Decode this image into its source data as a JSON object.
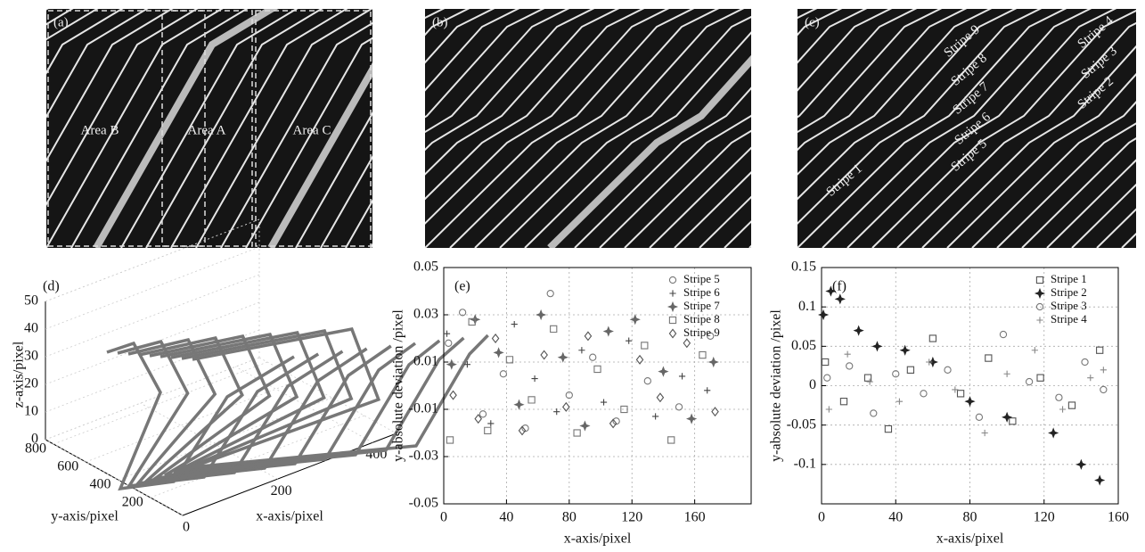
{
  "image_panels": [
    {
      "label": "(a)",
      "annotations": [
        "Area B",
        "Area A",
        "Area C"
      ]
    },
    {
      "label": "(b)",
      "annotations": []
    },
    {
      "label": "(c)",
      "annotations": [
        "Stripe 1",
        "Stripe 9",
        "Stripe 8",
        "Stripe 7",
        "Stripe 6",
        "Stripe 5",
        "Stripe 4",
        "Stripe 3",
        "Stripe 2"
      ]
    }
  ],
  "chart_data": [
    {
      "type": "line3d",
      "label": "(d)",
      "xlabel": "x-axis/pixel",
      "ylabel": "y-axis/pixel",
      "zlabel": "z-axis/pixel",
      "xlim": [
        0,
        450
      ],
      "ylim": [
        0,
        850
      ],
      "zlim": [
        0,
        50
      ],
      "xticks": [
        0,
        200,
        400
      ],
      "yticks": [
        200,
        400,
        600,
        800
      ],
      "zticks": [
        0,
        10,
        20,
        30,
        40,
        50
      ],
      "grid": true,
      "color": "#777"
    },
    {
      "type": "scatter",
      "label": "(e)",
      "xlabel": "x-axis/pixel",
      "ylabel": "y-absolute deviation /pixel",
      "xlim": [
        0,
        196
      ],
      "ylim": [
        -0.05,
        0.05
      ],
      "xticks": [
        0,
        40,
        80,
        120,
        160
      ],
      "yticks": [
        -0.05,
        -0.03,
        -0.01,
        0.01,
        0.03,
        0.05
      ],
      "grid": true,
      "legend": "upper right",
      "series": [
        {
          "name": "Stripe 5",
          "marker": "circle",
          "color": "#777",
          "x": [
            3,
            12,
            25,
            38,
            52,
            68,
            80,
            95,
            110,
            130,
            150,
            170
          ],
          "values": [
            0.018,
            0.031,
            -0.012,
            0.005,
            -0.018,
            0.039,
            -0.004,
            0.012,
            -0.015,
            0.002,
            -0.009,
            0.021
          ]
        },
        {
          "name": "Stripe 6",
          "marker": "plus",
          "color": "#444",
          "x": [
            2,
            15,
            30,
            45,
            58,
            72,
            88,
            102,
            118,
            135,
            152,
            168
          ],
          "values": [
            0.022,
            0.009,
            -0.016,
            0.026,
            0.003,
            -0.011,
            0.015,
            -0.007,
            0.019,
            -0.013,
            0.004,
            -0.002
          ]
        },
        {
          "name": "Stripe 7",
          "marker": "star",
          "color": "#666",
          "x": [
            5,
            20,
            35,
            48,
            62,
            76,
            90,
            105,
            122,
            140,
            158,
            172
          ],
          "values": [
            0.009,
            0.028,
            0.014,
            -0.008,
            0.03,
            0.012,
            -0.017,
            0.023,
            0.028,
            0.006,
            -0.014,
            0.01
          ]
        },
        {
          "name": "Stripe 8",
          "marker": "square",
          "color": "#777",
          "x": [
            4,
            18,
            28,
            42,
            56,
            70,
            85,
            98,
            115,
            128,
            145,
            165
          ],
          "values": [
            -0.023,
            0.027,
            -0.019,
            0.011,
            -0.006,
            0.024,
            -0.02,
            0.007,
            -0.01,
            0.017,
            -0.023,
            0.013
          ]
        },
        {
          "name": "Stripe 9",
          "marker": "diamond",
          "color": "#555",
          "x": [
            6,
            22,
            33,
            50,
            64,
            78,
            92,
            108,
            125,
            138,
            155,
            173
          ],
          "values": [
            -0.004,
            -0.014,
            0.02,
            -0.019,
            0.013,
            -0.009,
            0.021,
            -0.016,
            0.011,
            -0.005,
            0.018,
            -0.011
          ]
        }
      ]
    },
    {
      "type": "scatter",
      "label": "(f)",
      "xlabel": "x-axis/pixel",
      "ylabel": "y-absolute deviation /pixel",
      "xlim": [
        0,
        160
      ],
      "ylim": [
        -0.15,
        0.15
      ],
      "xticks": [
        0,
        40,
        80,
        120,
        160
      ],
      "yticks": [
        -0.1,
        -0.05,
        0,
        0.05,
        0.1,
        0.15
      ],
      "grid": true,
      "legend": "upper right",
      "series": [
        {
          "name": "Stripe 1",
          "marker": "square",
          "color": "#555",
          "x": [
            2,
            12,
            25,
            36,
            48,
            60,
            75,
            90,
            103,
            118,
            135,
            150
          ],
          "values": [
            0.03,
            -0.02,
            0.01,
            -0.055,
            0.02,
            0.06,
            -0.01,
            0.035,
            -0.045,
            0.01,
            -0.025,
            0.045
          ]
        },
        {
          "name": "Stripe 2",
          "marker": "star",
          "color": "#222",
          "x": [
            1,
            5,
            10,
            20,
            30,
            45,
            60,
            80,
            100,
            125,
            140,
            150
          ],
          "values": [
            0.09,
            0.12,
            0.11,
            0.07,
            0.05,
            0.045,
            0.03,
            -0.02,
            -0.04,
            -0.06,
            -0.1,
            -0.12
          ]
        },
        {
          "name": "Stripe 3",
          "marker": "circle",
          "color": "#777",
          "x": [
            3,
            15,
            28,
            40,
            55,
            68,
            85,
            98,
            112,
            128,
            142,
            152
          ],
          "values": [
            0.01,
            0.025,
            -0.035,
            0.015,
            -0.01,
            0.02,
            -0.04,
            0.065,
            0.005,
            -0.015,
            0.03,
            -0.005
          ]
        },
        {
          "name": "Stripe 4",
          "marker": "plus",
          "color": "#888",
          "x": [
            4,
            14,
            26,
            42,
            58,
            72,
            88,
            100,
            115,
            130,
            145,
            152
          ],
          "values": [
            -0.03,
            0.04,
            0.005,
            -0.02,
            0.03,
            -0.005,
            -0.06,
            0.015,
            0.045,
            -0.03,
            0.01,
            0.02
          ]
        }
      ]
    }
  ]
}
